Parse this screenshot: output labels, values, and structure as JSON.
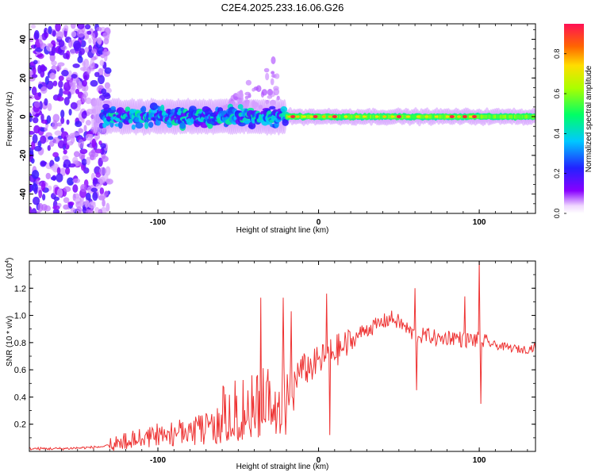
{
  "figure": {
    "title": "C2E4.2025.233.16.06.G26"
  },
  "chart_data": [
    {
      "type": "heatmap",
      "title": "C2E4.2025.233.16.06.G26",
      "xlabel": "Height of straight line (km)",
      "ylabel": "Frequency (Hz)",
      "xlim": [
        -180,
        135
      ],
      "ylim": [
        -50,
        48
      ],
      "x_ticks": [
        -100,
        0,
        100
      ],
      "x_tick_labels": [
        "-100",
        "0",
        "100"
      ],
      "y_ticks": [
        -40,
        -20,
        0,
        20,
        40
      ],
      "y_tick_labels": [
        "-40",
        "-20",
        "0",
        "20",
        "40"
      ],
      "colorbar": {
        "label": "Normalized spectral amplitude",
        "range": [
          0.0,
          0.95
        ],
        "ticks": [
          0.0,
          0.2,
          0.4,
          0.6,
          0.8
        ],
        "tick_labels": [
          "0.0",
          "0.2",
          "0.4",
          "0.6",
          "0.8"
        ],
        "colormap": "rainbow (violet to red)"
      },
      "description_points": {
        "scatter_region_x": [
          -180,
          -130
        ],
        "scatter_region_y": [
          -50,
          48
        ],
        "band_center_hz": 0,
        "band_halfwidth_hz_left": 8,
        "band_halfwidth_hz_right": 3,
        "upward_plume_x": [
          -60,
          -25
        ],
        "upward_plume_max_hz": 30,
        "hot_spots_x": [
          -16,
          -2,
          10,
          50,
          83,
          91,
          97
        ]
      }
    },
    {
      "type": "line",
      "xlabel": "Height of straight line (km)",
      "ylabel": "SNR (10 * v/v)",
      "y_multiplier_label": "(x10",
      "y_multiplier_exp": "4",
      "xlim": [
        -180,
        135
      ],
      "ylim": [
        0,
        1.4
      ],
      "x_ticks": [
        -100,
        0,
        100
      ],
      "x_tick_labels": [
        "-100",
        "0",
        "100"
      ],
      "y_ticks": [
        0.2,
        0.4,
        0.6,
        0.8,
        1.0,
        1.2
      ],
      "y_tick_labels": [
        "0.2",
        "0.4",
        "0.6",
        "0.8",
        "1.0",
        "1.2"
      ],
      "series": [
        {
          "name": "SNR",
          "color": "#ee3333",
          "x": [
            -180,
            -160,
            -140,
            -130,
            -120,
            -110,
            -100,
            -90,
            -80,
            -70,
            -60,
            -50,
            -40,
            -30,
            -25,
            -20,
            -15,
            -10,
            -5,
            0,
            5,
            10,
            15,
            20,
            25,
            30,
            35,
            40,
            45,
            50,
            55,
            60,
            65,
            70,
            75,
            80,
            85,
            90,
            95,
            100,
            105,
            110,
            115,
            120,
            125,
            130,
            135
          ],
          "values": [
            0.02,
            0.02,
            0.03,
            0.04,
            0.08,
            0.12,
            0.15,
            0.18,
            0.2,
            0.23,
            0.27,
            0.32,
            0.38,
            0.42,
            0.45,
            0.5,
            0.55,
            0.6,
            0.62,
            0.66,
            0.7,
            0.74,
            0.76,
            0.8,
            0.86,
            0.9,
            0.92,
            0.95,
            0.98,
            0.95,
            0.9,
            0.85,
            0.85,
            0.85,
            0.82,
            0.84,
            0.84,
            0.82,
            0.82,
            0.82,
            0.8,
            0.78,
            0.77,
            0.76,
            0.75,
            0.75,
            0.77
          ]
        }
      ],
      "spikes": [
        {
          "x": -36,
          "value": 1.13
        },
        {
          "x": -22,
          "value": 1.13
        },
        {
          "x": -17,
          "value": 1.03
        },
        {
          "x": 5,
          "value": 1.16
        },
        {
          "x": 7,
          "value": 0.12
        },
        {
          "x": 60,
          "value": 1.2
        },
        {
          "x": 61,
          "value": 0.45
        },
        {
          "x": 91,
          "value": 1.14
        },
        {
          "x": 100,
          "value": 1.4
        },
        {
          "x": 101,
          "value": 0.35
        }
      ]
    }
  ]
}
